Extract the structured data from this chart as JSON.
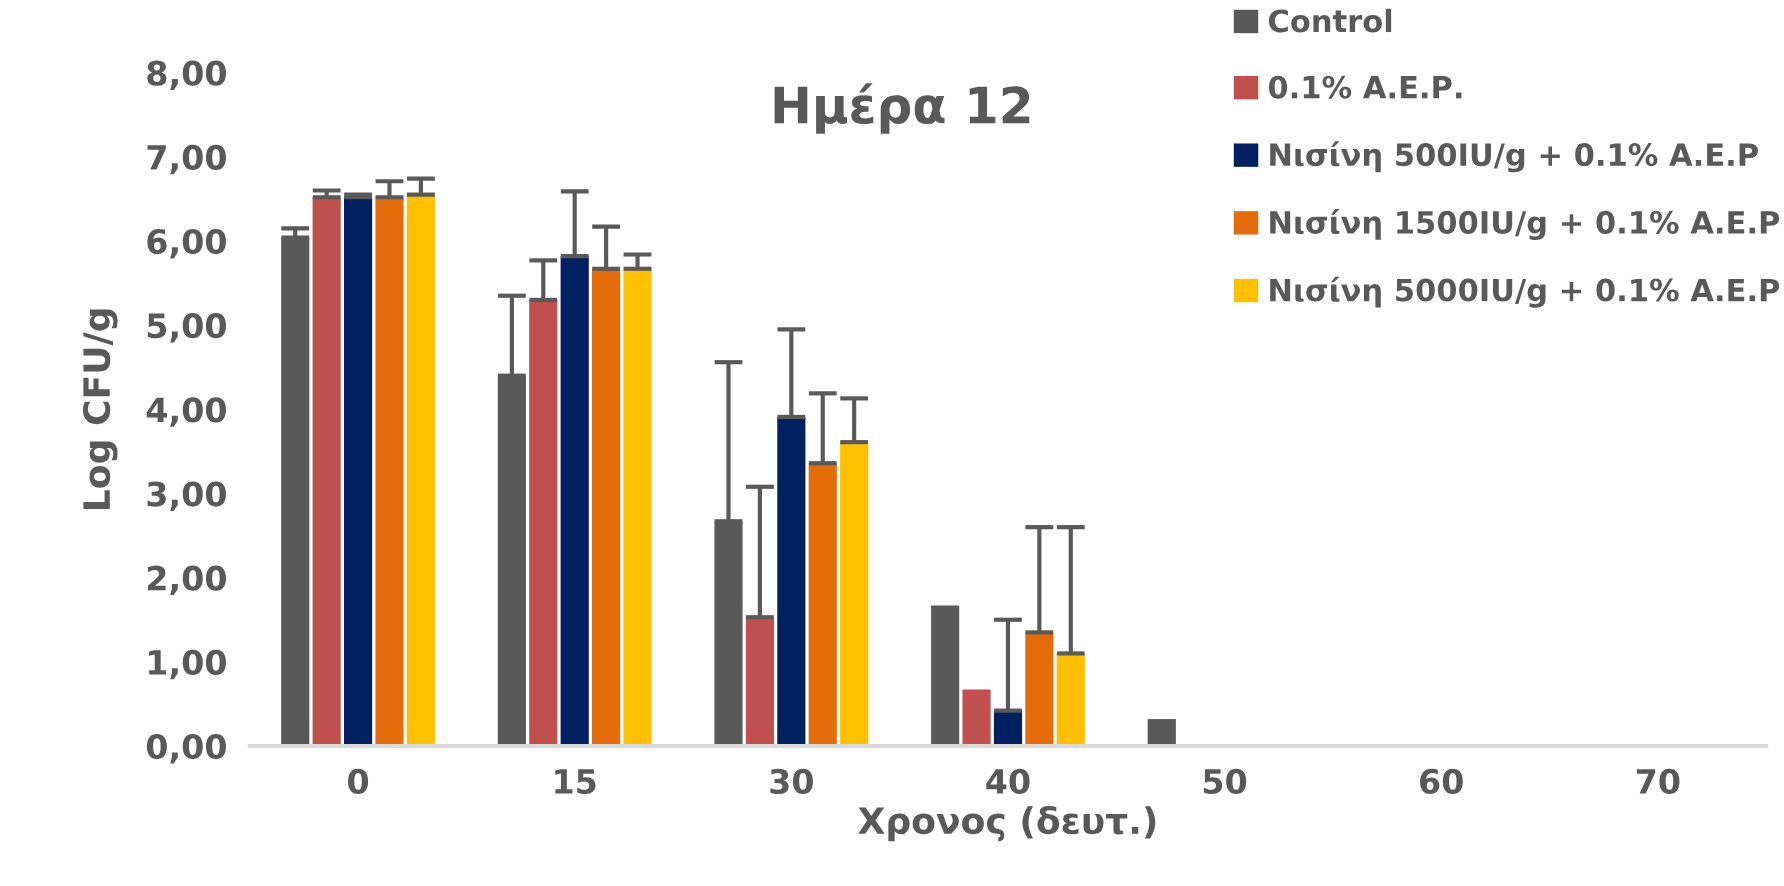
{
  "chart_data": {
    "type": "bar",
    "title": "Ημέρα 12",
    "xlabel": "Χρονος (δευτ.)",
    "ylabel": "Log CFU/g",
    "categories": [
      "0",
      "15",
      "30",
      "40",
      "50",
      "60",
      "70"
    ],
    "series": [
      {
        "name": "Control",
        "color": "#595959",
        "values": [
          6.04,
          4.4,
          2.67,
          1.67,
          0.32,
          0,
          0
        ],
        "errors": [
          [
            6.04,
            6.15
          ],
          [
            4.4,
            5.35
          ],
          [
            2.67,
            4.56
          ],
          null,
          null,
          null,
          null
        ]
      },
      {
        "name": "0.1% Α.Ε.Ρ.",
        "color": "#c0504d",
        "values": [
          6.52,
          5.3,
          1.53,
          0.67,
          0,
          0,
          0
        ],
        "errors": [
          [
            6.52,
            6.6
          ],
          [
            5.3,
            5.77
          ],
          [
            1.53,
            3.08
          ],
          null,
          null,
          null,
          null
        ]
      },
      {
        "name": "Νισίνη 500IU/g + 0.1% Α.Ε.Ρ",
        "color": "#002060",
        "values": [
          6.52,
          5.82,
          3.91,
          0.42,
          0,
          0,
          0
        ],
        "errors": [
          [
            6.52,
            6.55
          ],
          [
            5.82,
            6.59
          ],
          [
            3.91,
            4.95
          ],
          [
            0.42,
            1.5
          ],
          null,
          null,
          null
        ]
      },
      {
        "name": "Νισίνη 1500IU/g + 0.1% Α.Ε.Ρ",
        "color": "#e46c0a",
        "values": [
          6.52,
          5.67,
          3.36,
          1.35,
          0,
          0,
          0
        ],
        "errors": [
          [
            6.52,
            6.71
          ],
          [
            5.67,
            6.17
          ],
          [
            3.36,
            4.19
          ],
          [
            1.35,
            2.6
          ],
          null,
          null,
          null
        ]
      },
      {
        "name": "Νισίνη 5000IU/g + 0.1% Α.Ε.Ρ",
        "color": "#ffc000",
        "values": [
          6.55,
          5.67,
          3.61,
          1.1,
          0,
          0,
          0
        ],
        "errors": [
          [
            6.55,
            6.74
          ],
          [
            5.67,
            5.84
          ],
          [
            3.61,
            4.13
          ],
          [
            1.1,
            2.6
          ],
          null,
          null,
          null
        ]
      }
    ],
    "ylim": [
      0,
      8
    ],
    "yticks": [
      {
        "value": 0,
        "label": "0,00"
      },
      {
        "value": 1,
        "label": "1,00"
      },
      {
        "value": 2,
        "label": "2,00"
      },
      {
        "value": 3,
        "label": "3,00"
      },
      {
        "value": 4,
        "label": "4,00"
      },
      {
        "value": 5,
        "label": "5,00"
      },
      {
        "value": 6,
        "label": "6,00"
      },
      {
        "value": 7,
        "label": "7,00"
      },
      {
        "value": 8,
        "label": "8,00"
      }
    ],
    "grid": false,
    "legend": "top right"
  }
}
